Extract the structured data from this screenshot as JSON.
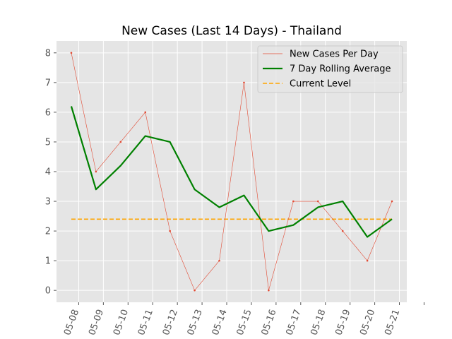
{
  "chart_data": {
    "type": "line",
    "title": "New Cases (Last 14 Days) - Thailand",
    "xlabel": "",
    "ylabel": "",
    "x_tick_labels": [
      "05-08",
      "05-09",
      "05-10",
      "05-11",
      "05-12",
      "05-13",
      "05-14",
      "05-15",
      "05-16",
      "05-17",
      "05-18",
      "05-19",
      "05-20",
      "05-21"
    ],
    "y_ticks": [
      0,
      1,
      2,
      3,
      4,
      5,
      6,
      7,
      8
    ],
    "ylim": [
      -0.4,
      8.4
    ],
    "grid": true,
    "legend_position": "top-right",
    "series": [
      {
        "name": "New Cases Per Day",
        "color": "#e24a33",
        "x": [
          0.7,
          1.7,
          2.7,
          3.7,
          4.7,
          5.7,
          6.7,
          7.7,
          8.7,
          9.7,
          10.7,
          11.7,
          12.7,
          13.7
        ],
        "values": [
          8,
          4,
          5,
          6,
          2,
          0,
          1,
          7,
          0,
          3,
          3,
          2,
          1,
          3
        ]
      },
      {
        "name": "7 Day Rolling Average",
        "color": "#008000",
        "x": [
          0.7,
          1.7,
          2.7,
          3.7,
          4.7,
          5.7,
          6.7,
          7.7,
          8.7,
          9.7,
          10.7,
          11.7,
          12.7,
          13.7
        ],
        "values": [
          6.2,
          3.4,
          4.2,
          5.2,
          5.0,
          3.4,
          2.8,
          3.2,
          2.0,
          2.2,
          2.8,
          3.0,
          1.8,
          2.4
        ]
      },
      {
        "name": "Current Level",
        "color": "#ffa500",
        "x": [
          0.7,
          13.7
        ],
        "values": [
          2.4,
          2.4
        ]
      }
    ]
  }
}
